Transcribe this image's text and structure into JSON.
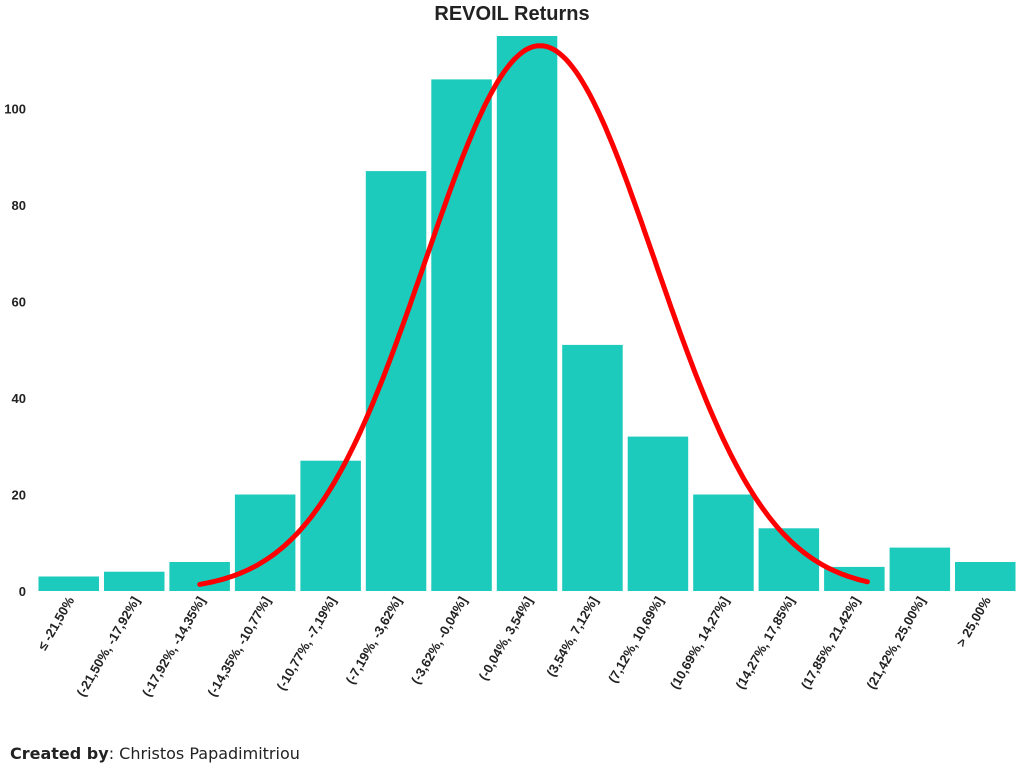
{
  "chart_data": {
    "type": "bar",
    "title": "REVOIL Returns",
    "xlabel": "",
    "ylabel": "",
    "ylim": [
      0,
      115
    ],
    "yticks": [
      0,
      20,
      40,
      60,
      80,
      100
    ],
    "grid": false,
    "legend": "none",
    "categories": [
      "≤ -21,50%",
      "(-21,50%, -17,92%]",
      "(-17,92%, -14,35%]",
      "(-14,35%, -10,77%]",
      "(-10,77%, -7,19%]",
      "(-7,19%, -3,62%]",
      "(-3,62%, -0,04%]",
      "(-0,04%, 3,54%]",
      "(3,54%, 7,12%]",
      "(7,12%, 10,69%]",
      "(10,69%, 14,27%]",
      "(14,27%, 17,85%]",
      "(17,85%, 21,42%]",
      "(21,42%, 25,00%]",
      "> 25,00%"
    ],
    "values": [
      3,
      4,
      6,
      20,
      27,
      87,
      106,
      115,
      51,
      32,
      20,
      13,
      5,
      9,
      6
    ],
    "bar_color": "#1ccbbc",
    "overlay_curve": {
      "type": "normal-fit",
      "color": "#ff0000",
      "peak": 113,
      "center_index": 7.2,
      "sigma_index": 1.75,
      "from_index": 2,
      "to_index": 12.2
    }
  },
  "credit": {
    "label": "Created by",
    "separator": ": ",
    "name": "Christos Papadimitriou"
  }
}
